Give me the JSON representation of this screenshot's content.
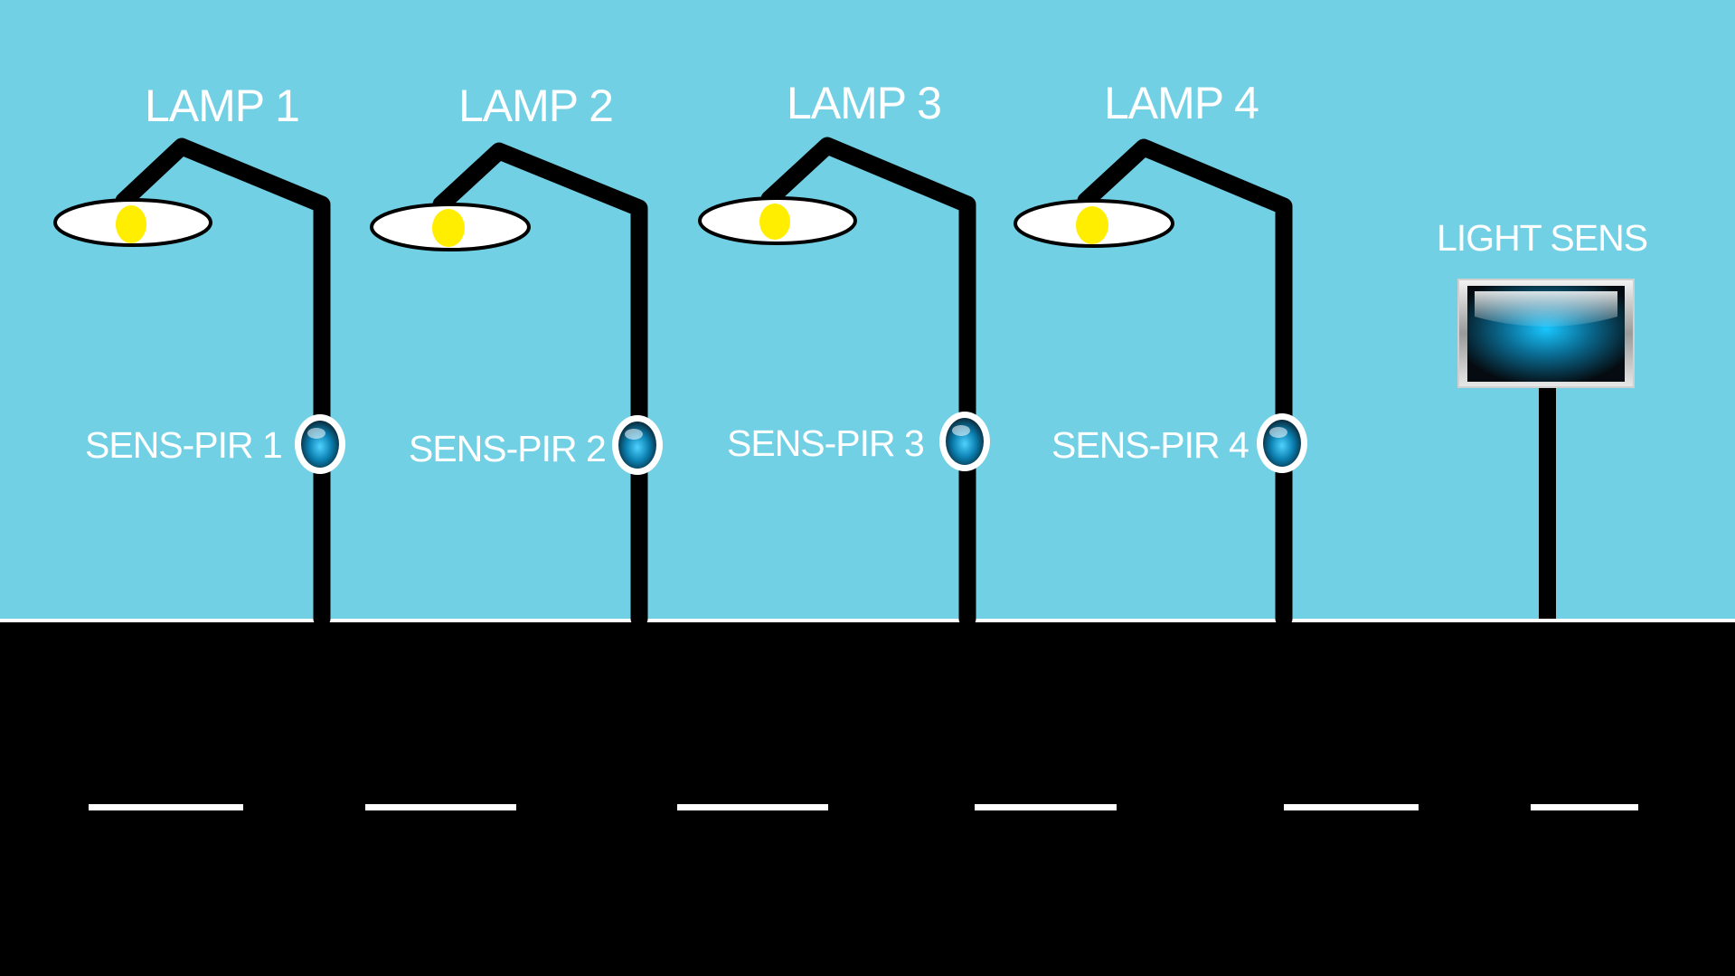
{
  "lamps": [
    {
      "title": "LAMP 1",
      "sensor_label": "SENS-PIR 1"
    },
    {
      "title": "LAMP 2",
      "sensor_label": "SENS-PIR 2"
    },
    {
      "title": "LAMP 3",
      "sensor_label": "SENS-PIR 3"
    },
    {
      "title": "LAMP 4",
      "sensor_label": "SENS-PIR 4"
    }
  ],
  "light_sensor": {
    "label": "LIGHT SENS"
  },
  "colors": {
    "sky": "#72d0e5",
    "road": "#000000",
    "pole": "#000000",
    "bulb": "#ffee00",
    "lane_marking": "#ffffff",
    "sensor_glow": "#1ab8e8"
  },
  "icons": {
    "lamp": "street-lamp-icon",
    "pir_sensor": "motion-sensor-icon",
    "light_sensor": "light-sensor-panel-icon"
  }
}
